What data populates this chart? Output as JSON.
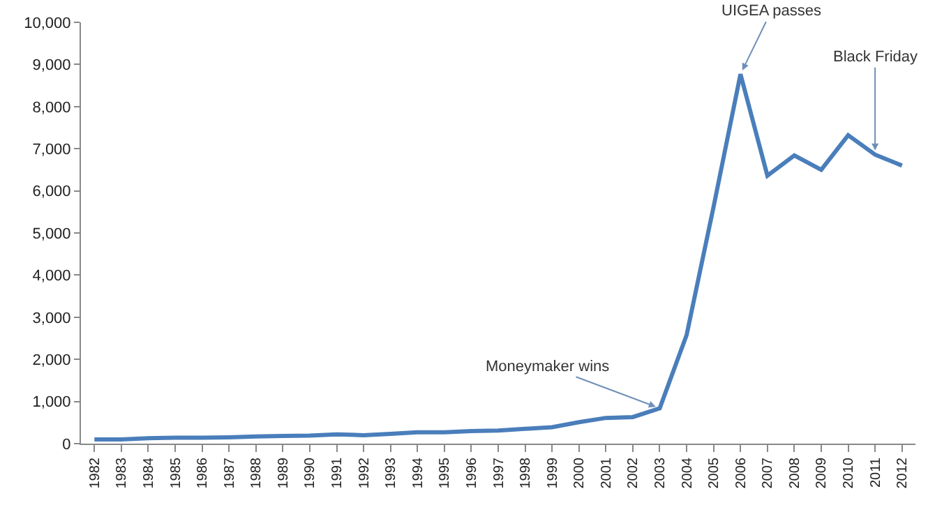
{
  "chart_data": {
    "type": "line",
    "categories": [
      "1982",
      "1983",
      "1984",
      "1985",
      "1986",
      "1987",
      "1988",
      "1989",
      "1990",
      "1991",
      "1992",
      "1993",
      "1994",
      "1995",
      "1996",
      "1997",
      "1998",
      "1999",
      "2000",
      "2001",
      "2002",
      "2003",
      "2004",
      "2005",
      "2006",
      "2007",
      "2008",
      "2009",
      "2010",
      "2011",
      "2012"
    ],
    "series": [
      {
        "color": "#4a7ebb",
        "values": [
          100,
          100,
          130,
          140,
          140,
          150,
          170,
          180,
          190,
          220,
          200,
          230,
          270,
          270,
          300,
          310,
          350,
          390,
          510,
          610,
          630,
          840,
          2580,
          5620,
          8770,
          6360,
          6840,
          6500,
          7320,
          6860,
          6600
        ]
      }
    ],
    "ylim": [
      0,
      10000
    ],
    "yticks": [
      {
        "value": 0,
        "label": "0"
      },
      {
        "value": 1000,
        "label": "1,000"
      },
      {
        "value": 2000,
        "label": "2,000"
      },
      {
        "value": 3000,
        "label": "3,000"
      },
      {
        "value": 4000,
        "label": "4,000"
      },
      {
        "value": 5000,
        "label": "5,000"
      },
      {
        "value": 6000,
        "label": "6,000"
      },
      {
        "value": 7000,
        "label": "7,000"
      },
      {
        "value": 8000,
        "label": "8,000"
      },
      {
        "value": 9000,
        "label": "9,000"
      },
      {
        "value": 10000,
        "label": "10,000"
      }
    ],
    "annotations": [
      {
        "text": "Moneymaker wins",
        "x": "2003",
        "y": 840
      },
      {
        "text": "UIGEA passes",
        "x": "2006",
        "y": 8770
      },
      {
        "text": "Black Friday",
        "x": "2011",
        "y": 6860
      }
    ],
    "marker": "none",
    "line_style": "solid"
  }
}
